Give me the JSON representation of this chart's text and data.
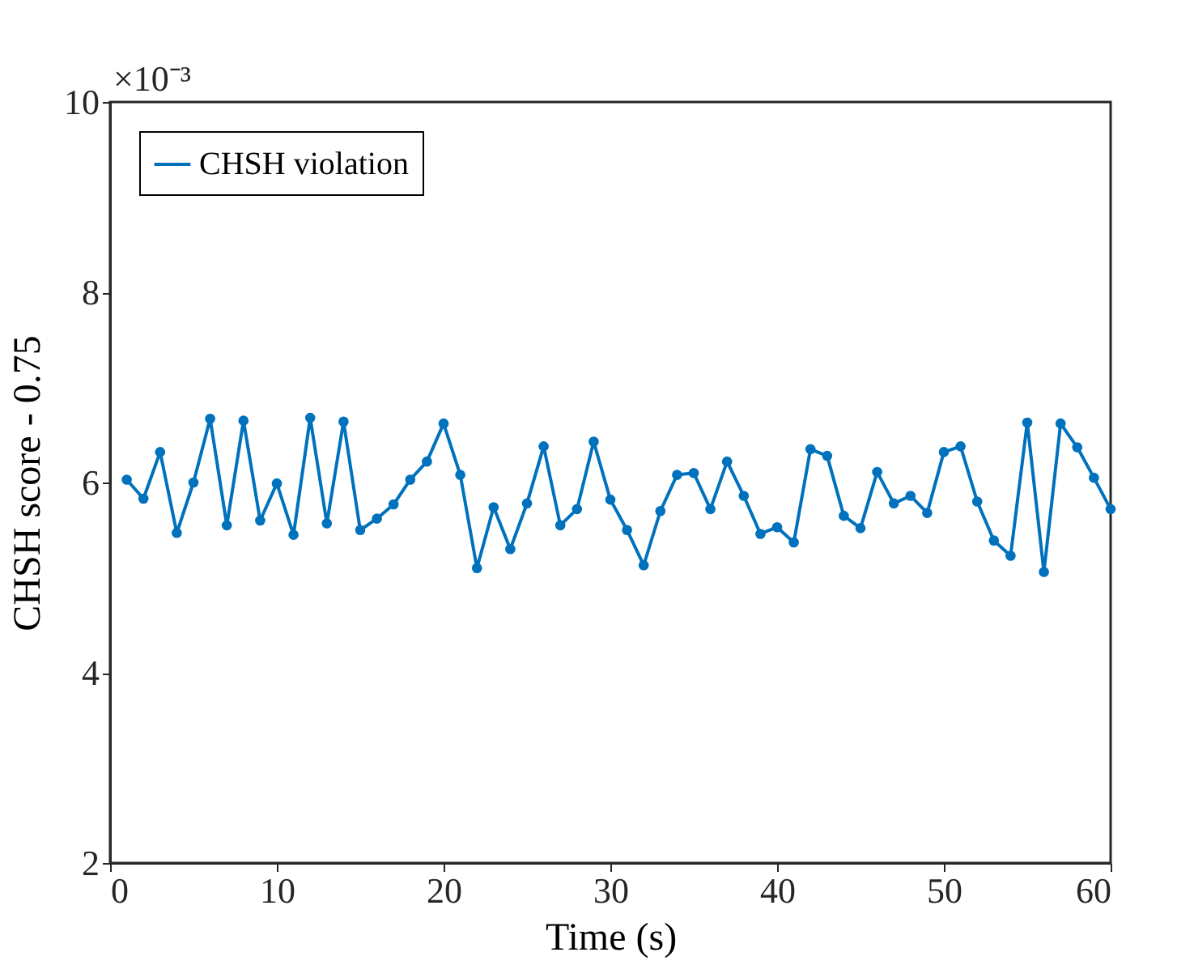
{
  "chart_data": {
    "type": "line",
    "xlabel": "Time (s)",
    "ylabel": "CHSH score - 0.75",
    "annotations": [
      "×10⁻³"
    ],
    "x": [
      1,
      2,
      3,
      4,
      5,
      6,
      7,
      8,
      9,
      10,
      11,
      12,
      13,
      14,
      15,
      16,
      17,
      18,
      19,
      20,
      21,
      22,
      23,
      24,
      25,
      26,
      27,
      28,
      29,
      30,
      31,
      32,
      33,
      34,
      35,
      36,
      37,
      38,
      39,
      40,
      41,
      42,
      43,
      44,
      45,
      46,
      47,
      48,
      49,
      50,
      51,
      52,
      53,
      54,
      55,
      56,
      57,
      58,
      59,
      60
    ],
    "series": [
      {
        "name": "CHSH violation",
        "color": "#0072bd",
        "values": [
          6.03,
          5.83,
          6.32,
          5.47,
          6.0,
          6.67,
          5.55,
          6.65,
          5.6,
          5.99,
          5.45,
          6.68,
          5.57,
          6.64,
          5.5,
          5.62,
          5.77,
          6.03,
          6.22,
          6.62,
          6.08,
          5.1,
          5.74,
          5.3,
          5.78,
          6.38,
          5.55,
          5.72,
          6.43,
          5.82,
          5.5,
          5.13,
          5.7,
          6.08,
          6.1,
          5.72,
          6.22,
          5.86,
          5.46,
          5.53,
          5.37,
          6.35,
          6.28,
          5.65,
          5.52,
          6.11,
          5.78,
          5.86,
          5.68,
          6.32,
          6.38,
          5.8,
          5.39,
          5.23,
          6.63,
          5.06,
          6.62,
          6.37,
          6.05,
          5.72
        ]
      }
    ],
    "xlim": [
      0,
      60
    ],
    "xticks": [
      0,
      10,
      20,
      30,
      40,
      50,
      60
    ],
    "ylim": [
      2,
      10
    ],
    "yticks": [
      2,
      4,
      6,
      8,
      10
    ],
    "grid": false,
    "legend": "top left",
    "marker": "circle",
    "line_style": "solid"
  }
}
